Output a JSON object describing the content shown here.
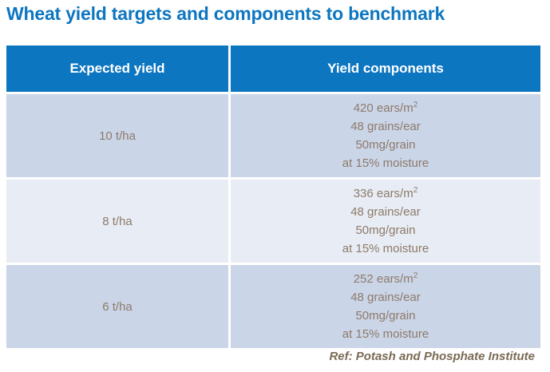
{
  "page": {
    "title": "Wheat yield targets and components to benchmark",
    "footer": "Ref: Potash and Phosphate Institute"
  },
  "table": {
    "header": {
      "expected_yield": "Expected yield",
      "yield_components": "Yield components"
    },
    "rows": [
      {
        "yield": "10 t/ha",
        "ears": "420 ears/m",
        "ears_sup": "2",
        "grains": "48 grains/ear",
        "grain_weight": "50mg/grain",
        "moisture": "at 15% moisture"
      },
      {
        "yield": "8 t/ha",
        "ears": "336 ears/m",
        "ears_sup": "2",
        "grains": "48 grains/ear",
        "grain_weight": "50mg/grain",
        "moisture": "at 15% moisture"
      },
      {
        "yield": "6 t/ha",
        "ears": "252 ears/m",
        "ears_sup": "2",
        "grains": "48 grains/ear",
        "grain_weight": "50mg/grain",
        "moisture": "at 15% moisture"
      }
    ]
  },
  "colors": {
    "accent_blue": "#0d76c0",
    "header_text": "#ffffff",
    "row_dark_bg": "#cbd5e8",
    "row_light_bg": "#e8ecf4",
    "cell_text": "#8c7b6a",
    "footer_text": "#7a6a55"
  }
}
